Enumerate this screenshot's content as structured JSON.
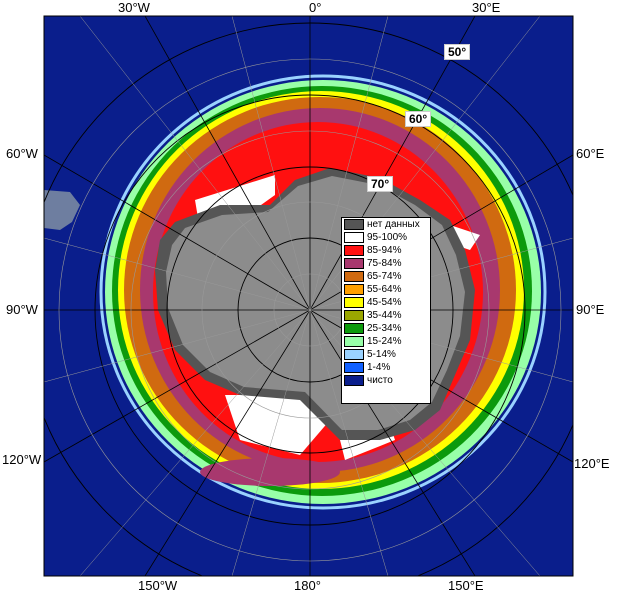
{
  "map": {
    "longitude_labels": {
      "top_left": "30°W",
      "top_center": "0°",
      "top_right": "30°E",
      "left_upper": "60°W",
      "left_middle": "90°W",
      "left_lower": "120°W",
      "right_upper": "60°E",
      "right_middle": "90°E",
      "right_lower": "120°E",
      "bottom_left": "150°W",
      "bottom_center": "180°",
      "bottom_right": "150°E"
    },
    "latitude_labels": [
      "50°",
      "60°",
      "70°"
    ],
    "colors": {
      "ocean": "#0a1e8c",
      "land": "#8c8c8c",
      "no_data": "#555555"
    }
  },
  "legend": {
    "items": [
      {
        "label": "нет данных",
        "color": "#555555"
      },
      {
        "label": "95-100%",
        "color": "#ffffff"
      },
      {
        "label": "85-94%",
        "color": "#ff1010"
      },
      {
        "label": "75-84%",
        "color": "#a8386e"
      },
      {
        "label": "65-74%",
        "color": "#d06a10"
      },
      {
        "label": "55-64%",
        "color": "#ffa000"
      },
      {
        "label": "45-54%",
        "color": "#ffff00"
      },
      {
        "label": "35-44%",
        "color": "#9aa600"
      },
      {
        "label": "25-34%",
        "color": "#0c9a0c"
      },
      {
        "label": "15-24%",
        "color": "#98ffa8"
      },
      {
        "label": "5-14%",
        "color": "#9ad2ff"
      },
      {
        "label": "1-4%",
        "color": "#1060ff"
      },
      {
        "label": "чисто",
        "color": "#0a1e8c"
      }
    ]
  }
}
